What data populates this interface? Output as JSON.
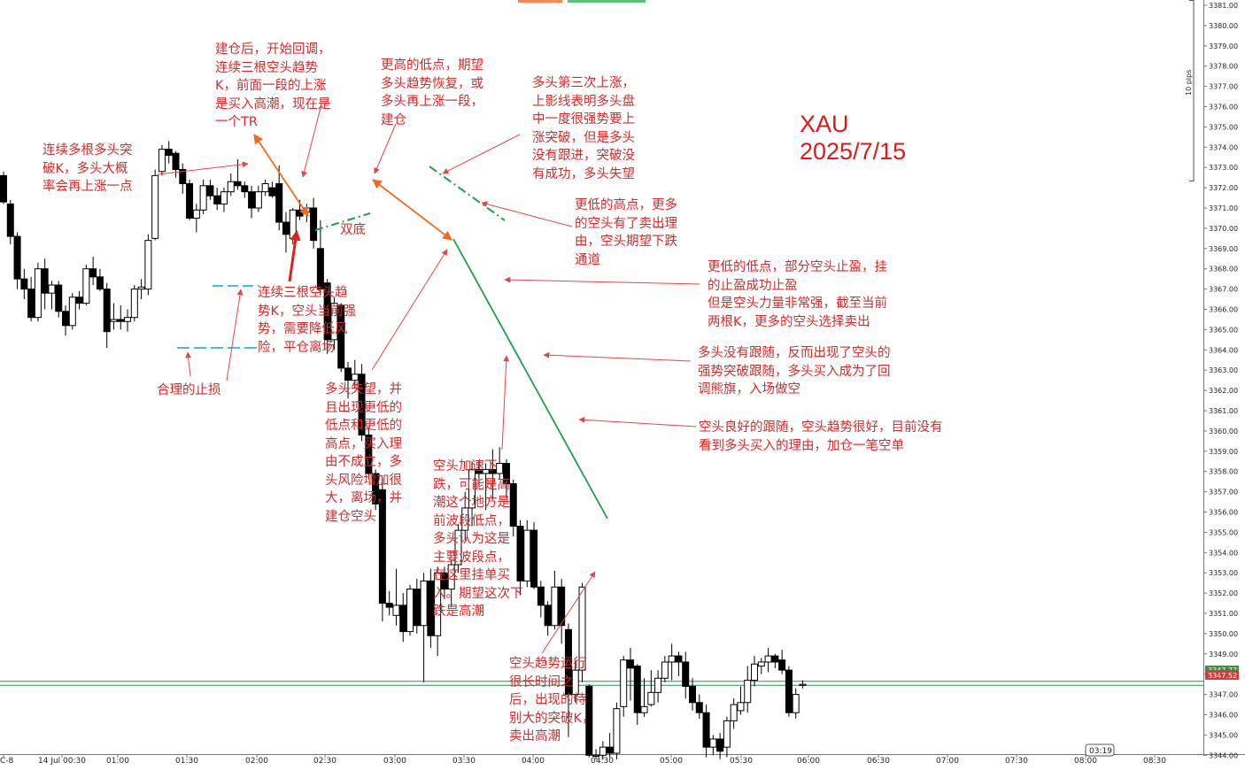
{
  "instrument_label": "XAU",
  "date_label": "2025/7/15",
  "axis": {
    "pips_label": "10 pips",
    "y_ticks": [
      "3381.00",
      "3380.00",
      "3379.00",
      "3378.00",
      "3377.00",
      "3376.00",
      "3375.00",
      "3374.00",
      "3373.00",
      "3372.00",
      "3371.00",
      "3370.00",
      "3369.00",
      "3368.00",
      "3367.00",
      "3366.00",
      "3365.00",
      "3364.00",
      "3363.00",
      "3362.00",
      "3361.00",
      "3360.00",
      "3359.00",
      "3358.00",
      "3357.00",
      "3356.00",
      "3355.00",
      "3354.00",
      "3353.00",
      "3352.00",
      "3351.00",
      "3350.00",
      "3349.00",
      "3348.00",
      "3347.00",
      "3346.00",
      "3345.00",
      "3344.00"
    ],
    "x_ticks": [
      "C-8",
      "14 Jul 00:30",
      "01:00",
      "01:30",
      "02:00",
      "02:30",
      "03:00",
      "03:30",
      "04:00",
      "04:30",
      "05:00",
      "05:30",
      "06:00",
      "06:30",
      "07:00",
      "07:30",
      "08:00",
      "08:30"
    ],
    "price_badge_green": "3347.77",
    "price_badge_red": "3347.52",
    "time_badge": "03:19"
  },
  "annotations": [
    {
      "text": "连续多根多头突\n破K，多头大概\n率会再上涨一点"
    },
    {
      "text": "建仓后，开始回调，\n连续三根空头趋势\nK，前面一段的上涨\n是买入高潮，现在是\n一个TR"
    },
    {
      "text": "更高的低点，期望\n多头趋势恢复，或\n多头再上涨一段，\n建仓"
    },
    {
      "text": "多头第三次上涨，\n上影线表明多头盘\n中一度很强势要上\n涨突破，但是多头\n没有跟进，突破没\n有成功，多头失望"
    },
    {
      "text": "更低的高点，更多\n的空头有了卖出理\n由，空头期望下跌\n通道"
    },
    {
      "text": "双底"
    },
    {
      "text": "更低的低点，部分空头止盈，挂\n的止盈成功止盈\n但是空头力量非常强，截至当前\n两根K，更多的空头选择卖出"
    },
    {
      "text": "连续三根空头趋\n势K，空头当前强\n势，需要降低风\n险，平仓离场"
    },
    {
      "text": "合理的止损"
    },
    {
      "text": "多头没有跟随，反而出现了空头的\n强势突破跟随，多头买入成为了回\n调熊旗，入场做空"
    },
    {
      "text": "多头失望，并\n且出现更低的\n低点和更低的\n高点，买入理\n由不成立，多\n头风险增加很\n大，离场，并\n建仓空头"
    },
    {
      "text": "空头加速下\n跌，可能是高\n潮这个地方是\n前波段低点，\n多头认为这是\n主要波段点，\n在这里挂单买\n入。期望这次下\n跌是高潮"
    },
    {
      "text": "空头良好的跟随，空头趋势很好，目前没有\n看到多头买入的理由，加仓一笔空单"
    },
    {
      "text": "空头趋势运行\n很长时间之\n后，出现的特\n别大的突破K，\n卖出高潮"
    }
  ],
  "chart_data": {
    "type": "candlestick",
    "timeframe": "5 minutes",
    "y_unit": "price",
    "ylim": [
      3343.7,
      3381.3
    ],
    "y_tick_step": 1,
    "grid": false,
    "candles": [
      {
        "o": 3372.6,
        "h": 3372.8,
        "l": 3371.2,
        "c": 3371.3
      },
      {
        "o": 3371.2,
        "h": 3371.4,
        "l": 3369.2,
        "c": 3369.6
      },
      {
        "o": 3369.6,
        "h": 3369.8,
        "l": 3367.0,
        "c": 3367.5
      },
      {
        "o": 3367.5,
        "h": 3368.0,
        "l": 3366.5,
        "c": 3367.0
      },
      {
        "o": 3367.0,
        "h": 3367.6,
        "l": 3365.4,
        "c": 3365.6
      },
      {
        "o": 3365.6,
        "h": 3368.3,
        "l": 3365.4,
        "c": 3368.0
      },
      {
        "o": 3368.0,
        "h": 3368.5,
        "l": 3366.0,
        "c": 3366.8
      },
      {
        "o": 3366.8,
        "h": 3367.4,
        "l": 3366.0,
        "c": 3367.2
      },
      {
        "o": 3367.2,
        "h": 3367.4,
        "l": 3365.6,
        "c": 3365.9
      },
      {
        "o": 3365.9,
        "h": 3366.2,
        "l": 3364.7,
        "c": 3365.2
      },
      {
        "o": 3365.2,
        "h": 3366.8,
        "l": 3365.0,
        "c": 3366.6
      },
      {
        "o": 3366.6,
        "h": 3366.9,
        "l": 3366.0,
        "c": 3366.3
      },
      {
        "o": 3366.3,
        "h": 3368.2,
        "l": 3366.2,
        "c": 3368.0
      },
      {
        "o": 3368.0,
        "h": 3368.6,
        "l": 3367.2,
        "c": 3367.6
      },
      {
        "o": 3367.6,
        "h": 3368.0,
        "l": 3366.9,
        "c": 3367.0
      },
      {
        "o": 3367.0,
        "h": 3367.3,
        "l": 3364.1,
        "c": 3364.9
      },
      {
        "o": 3365.4,
        "h": 3366.3,
        "l": 3365.0,
        "c": 3365.5
      },
      {
        "o": 3365.5,
        "h": 3366.2,
        "l": 3365.0,
        "c": 3365.4
      },
      {
        "o": 3365.4,
        "h": 3366.0,
        "l": 3364.9,
        "c": 3365.6
      },
      {
        "o": 3365.6,
        "h": 3367.2,
        "l": 3365.4,
        "c": 3367.0
      },
      {
        "o": 3367.0,
        "h": 3367.5,
        "l": 3366.5,
        "c": 3367.1
      },
      {
        "o": 3367.0,
        "h": 3369.7,
        "l": 3366.7,
        "c": 3369.4
      },
      {
        "o": 3369.5,
        "h": 3372.9,
        "l": 3369.4,
        "c": 3372.6
      },
      {
        "o": 3372.8,
        "h": 3374.1,
        "l": 3372.6,
        "c": 3373.9
      },
      {
        "o": 3373.9,
        "h": 3374.3,
        "l": 3373.2,
        "c": 3373.6
      },
      {
        "o": 3373.7,
        "h": 3373.8,
        "l": 3372.5,
        "c": 3372.9
      },
      {
        "o": 3372.9,
        "h": 3373.2,
        "l": 3371.7,
        "c": 3372.2
      },
      {
        "o": 3372.2,
        "h": 3372.4,
        "l": 3370.4,
        "c": 3370.5
      },
      {
        "o": 3370.5,
        "h": 3371.2,
        "l": 3369.8,
        "c": 3370.9
      },
      {
        "o": 3370.9,
        "h": 3372.4,
        "l": 3370.7,
        "c": 3372.1
      },
      {
        "o": 3372.1,
        "h": 3372.4,
        "l": 3371.4,
        "c": 3371.6
      },
      {
        "o": 3371.6,
        "h": 3372.0,
        "l": 3370.9,
        "c": 3371.2
      },
      {
        "o": 3371.2,
        "h": 3372.0,
        "l": 3370.8,
        "c": 3371.8
      },
      {
        "o": 3371.8,
        "h": 3372.7,
        "l": 3371.6,
        "c": 3372.3
      },
      {
        "o": 3372.3,
        "h": 3373.4,
        "l": 3371.9,
        "c": 3372.1
      },
      {
        "o": 3372.1,
        "h": 3372.3,
        "l": 3371.5,
        "c": 3371.8
      },
      {
        "o": 3371.8,
        "h": 3372.1,
        "l": 3370.5,
        "c": 3371.0
      },
      {
        "o": 3371.0,
        "h": 3372.1,
        "l": 3370.8,
        "c": 3371.8
      },
      {
        "o": 3371.8,
        "h": 3372.4,
        "l": 3371.6,
        "c": 3372.2
      },
      {
        "o": 3372.0,
        "h": 3372.3,
        "l": 3371.5,
        "c": 3371.6
      },
      {
        "o": 3372.2,
        "h": 3373.1,
        "l": 3369.9,
        "c": 3370.3
      },
      {
        "o": 3370.3,
        "h": 3370.8,
        "l": 3368.8,
        "c": 3369.7
      },
      {
        "o": 3369.5,
        "h": 3371.0,
        "l": 3369.2,
        "c": 3370.9
      },
      {
        "o": 3370.9,
        "h": 3371.4,
        "l": 3370.4,
        "c": 3370.6
      },
      {
        "o": 3370.8,
        "h": 3371.2,
        "l": 3370.3,
        "c": 3371.0
      },
      {
        "o": 3371.0,
        "h": 3371.5,
        "l": 3369.0,
        "c": 3369.4
      },
      {
        "o": 3369.0,
        "h": 3370.4,
        "l": 3366.7,
        "c": 3367.0
      },
      {
        "o": 3367.3,
        "h": 3367.5,
        "l": 3363.8,
        "c": 3364.5
      },
      {
        "o": 3364.5,
        "h": 3366.6,
        "l": 3364.0,
        "c": 3366.3
      },
      {
        "o": 3366.2,
        "h": 3366.3,
        "l": 3362.9,
        "c": 3363.1
      },
      {
        "o": 3363.1,
        "h": 3363.4,
        "l": 3361.6,
        "c": 3362.5
      },
      {
        "o": 3362.5,
        "h": 3363.5,
        "l": 3362.1,
        "c": 3362.8
      },
      {
        "o": 3362.8,
        "h": 3363.3,
        "l": 3359.5,
        "c": 3359.8
      },
      {
        "o": 3359.8,
        "h": 3360.2,
        "l": 3357.6,
        "c": 3357.9
      },
      {
        "o": 3357.9,
        "h": 3358.1,
        "l": 3356.1,
        "c": 3356.4
      },
      {
        "o": 3357.1,
        "h": 3357.7,
        "l": 3350.6,
        "c": 3351.5
      },
      {
        "o": 3351.5,
        "h": 3352.1,
        "l": 3350.9,
        "c": 3351.3
      },
      {
        "o": 3350.9,
        "h": 3353.2,
        "l": 3350.4,
        "c": 3351.4
      },
      {
        "o": 3351.4,
        "h": 3352.0,
        "l": 3349.6,
        "c": 3350.1
      },
      {
        "o": 3350.1,
        "h": 3352.4,
        "l": 3349.9,
        "c": 3352.2
      },
      {
        "o": 3352.2,
        "h": 3352.7,
        "l": 3350.0,
        "c": 3350.4
      },
      {
        "o": 3350.4,
        "h": 3353.0,
        "l": 3347.6,
        "c": 3352.6
      },
      {
        "o": 3352.6,
        "h": 3353.2,
        "l": 3349.3,
        "c": 3349.9
      },
      {
        "o": 3349.9,
        "h": 3353.3,
        "l": 3348.9,
        "c": 3353.0
      },
      {
        "o": 3353.0,
        "h": 3353.3,
        "l": 3351.7,
        "c": 3352.2
      },
      {
        "o": 3352.2,
        "h": 3353.6,
        "l": 3351.3,
        "c": 3353.4
      },
      {
        "o": 3353.4,
        "h": 3355.4,
        "l": 3353.0,
        "c": 3355.1
      },
      {
        "o": 3355.1,
        "h": 3357.0,
        "l": 3354.6,
        "c": 3356.2
      },
      {
        "o": 3356.2,
        "h": 3358.5,
        "l": 3355.3,
        "c": 3358.1
      },
      {
        "o": 3358.1,
        "h": 3358.5,
        "l": 3357.3,
        "c": 3357.9
      },
      {
        "o": 3357.9,
        "h": 3358.4,
        "l": 3356.1,
        "c": 3358.1
      },
      {
        "o": 3358.1,
        "h": 3359.1,
        "l": 3356.6,
        "c": 3357.9
      },
      {
        "o": 3357.9,
        "h": 3359.2,
        "l": 3357.6,
        "c": 3358.4
      },
      {
        "o": 3358.4,
        "h": 3358.6,
        "l": 3356.7,
        "c": 3357.4
      },
      {
        "o": 3357.4,
        "h": 3357.6,
        "l": 3354.8,
        "c": 3355.3
      },
      {
        "o": 3355.3,
        "h": 3355.6,
        "l": 3351.9,
        "c": 3352.6
      },
      {
        "o": 3352.6,
        "h": 3355.6,
        "l": 3352.3,
        "c": 3355.1
      },
      {
        "o": 3355.1,
        "h": 3355.5,
        "l": 3352.2,
        "c": 3352.3
      },
      {
        "o": 3352.3,
        "h": 3352.6,
        "l": 3350.8,
        "c": 3351.4
      },
      {
        "o": 3351.4,
        "h": 3351.6,
        "l": 3349.9,
        "c": 3350.4
      },
      {
        "o": 3350.4,
        "h": 3353.1,
        "l": 3350.2,
        "c": 3352.3
      },
      {
        "o": 3352.3,
        "h": 3352.7,
        "l": 3349.5,
        "c": 3350.4
      },
      {
        "o": 3350.2,
        "h": 3350.5,
        "l": 3344.9,
        "c": 3347.0
      },
      {
        "o": 3347.0,
        "h": 3348.7,
        "l": 3346.6,
        "c": 3348.2
      },
      {
        "o": 3348.2,
        "h": 3352.5,
        "l": 3347.6,
        "c": 3352.3
      },
      {
        "o": 3347.4,
        "h": 3347.5,
        "l": 3343.9,
        "c": 3344.0
      },
      {
        "o": 3344.0,
        "h": 3344.3,
        "l": 3343.8,
        "c": 3344.0
      },
      {
        "o": 3344.0,
        "h": 3344.7,
        "l": 3343.8,
        "c": 3344.4
      },
      {
        "o": 3344.4,
        "h": 3345.1,
        "l": 3343.9,
        "c": 3344.1
      },
      {
        "o": 3344.1,
        "h": 3346.6,
        "l": 3343.8,
        "c": 3346.3
      },
      {
        "o": 3346.4,
        "h": 3348.9,
        "l": 3345.9,
        "c": 3348.7
      },
      {
        "o": 3348.7,
        "h": 3349.3,
        "l": 3346.7,
        "c": 3348.3
      },
      {
        "o": 3348.4,
        "h": 3348.5,
        "l": 3345.5,
        "c": 3346.1
      },
      {
        "o": 3346.1,
        "h": 3347.8,
        "l": 3345.9,
        "c": 3346.4
      },
      {
        "o": 3346.5,
        "h": 3348.2,
        "l": 3346.4,
        "c": 3347.1
      },
      {
        "o": 3347.1,
        "h": 3348.2,
        "l": 3346.6,
        "c": 3347.8
      },
      {
        "o": 3347.8,
        "h": 3348.9,
        "l": 3347.6,
        "c": 3348.6
      },
      {
        "o": 3348.6,
        "h": 3349.5,
        "l": 3347.7,
        "c": 3348.9
      },
      {
        "o": 3348.9,
        "h": 3349.1,
        "l": 3347.9,
        "c": 3348.6
      },
      {
        "o": 3348.6,
        "h": 3349.1,
        "l": 3346.8,
        "c": 3347.4
      },
      {
        "o": 3347.4,
        "h": 3347.8,
        "l": 3346.2,
        "c": 3346.6
      },
      {
        "o": 3346.6,
        "h": 3347.0,
        "l": 3345.8,
        "c": 3346.1
      },
      {
        "o": 3346.1,
        "h": 3346.5,
        "l": 3343.9,
        "c": 3344.4
      },
      {
        "o": 3344.4,
        "h": 3345.0,
        "l": 3344.0,
        "c": 3344.8
      },
      {
        "o": 3344.8,
        "h": 3345.1,
        "l": 3343.8,
        "c": 3344.2
      },
      {
        "o": 3344.4,
        "h": 3345.9,
        "l": 3343.9,
        "c": 3345.7
      },
      {
        "o": 3345.7,
        "h": 3346.8,
        "l": 3345.3,
        "c": 3346.5
      },
      {
        "o": 3346.2,
        "h": 3347.4,
        "l": 3346.0,
        "c": 3346.6
      },
      {
        "o": 3346.6,
        "h": 3348.4,
        "l": 3346.1,
        "c": 3347.7
      },
      {
        "o": 3347.7,
        "h": 3348.9,
        "l": 3347.4,
        "c": 3348.5
      },
      {
        "o": 3348.4,
        "h": 3348.8,
        "l": 3348.0,
        "c": 3348.6
      },
      {
        "o": 3348.6,
        "h": 3349.3,
        "l": 3348.1,
        "c": 3348.9
      },
      {
        "o": 3348.9,
        "h": 3349.0,
        "l": 3348.3,
        "c": 3348.6
      },
      {
        "o": 3348.7,
        "h": 3349.2,
        "l": 3348.0,
        "c": 3348.2
      },
      {
        "o": 3348.2,
        "h": 3348.4,
        "l": 3345.9,
        "c": 3346.1
      },
      {
        "o": 3346.1,
        "h": 3347.3,
        "l": 3345.8,
        "c": 3347.0
      },
      {
        "o": 3347.5,
        "h": 3347.7,
        "l": 3347.3,
        "c": 3347.5
      }
    ],
    "horizontal_lines": [
      {
        "price": 3347.65,
        "color": "#2e8b57"
      },
      {
        "price": 3347.45,
        "color": "#2e8b57"
      }
    ]
  },
  "colors": {
    "bull_candle": "#ffffff",
    "bear_candle": "#000000",
    "annotation_text": "#d12c2c",
    "arrow_red": "#e04848",
    "arrow_orange": "#f26b1d",
    "trend_green": "#1a9e4a",
    "stop_line": "#4fb8ea",
    "badge_green": "#3f8f3f",
    "badge_red": "#d63a3a"
  }
}
